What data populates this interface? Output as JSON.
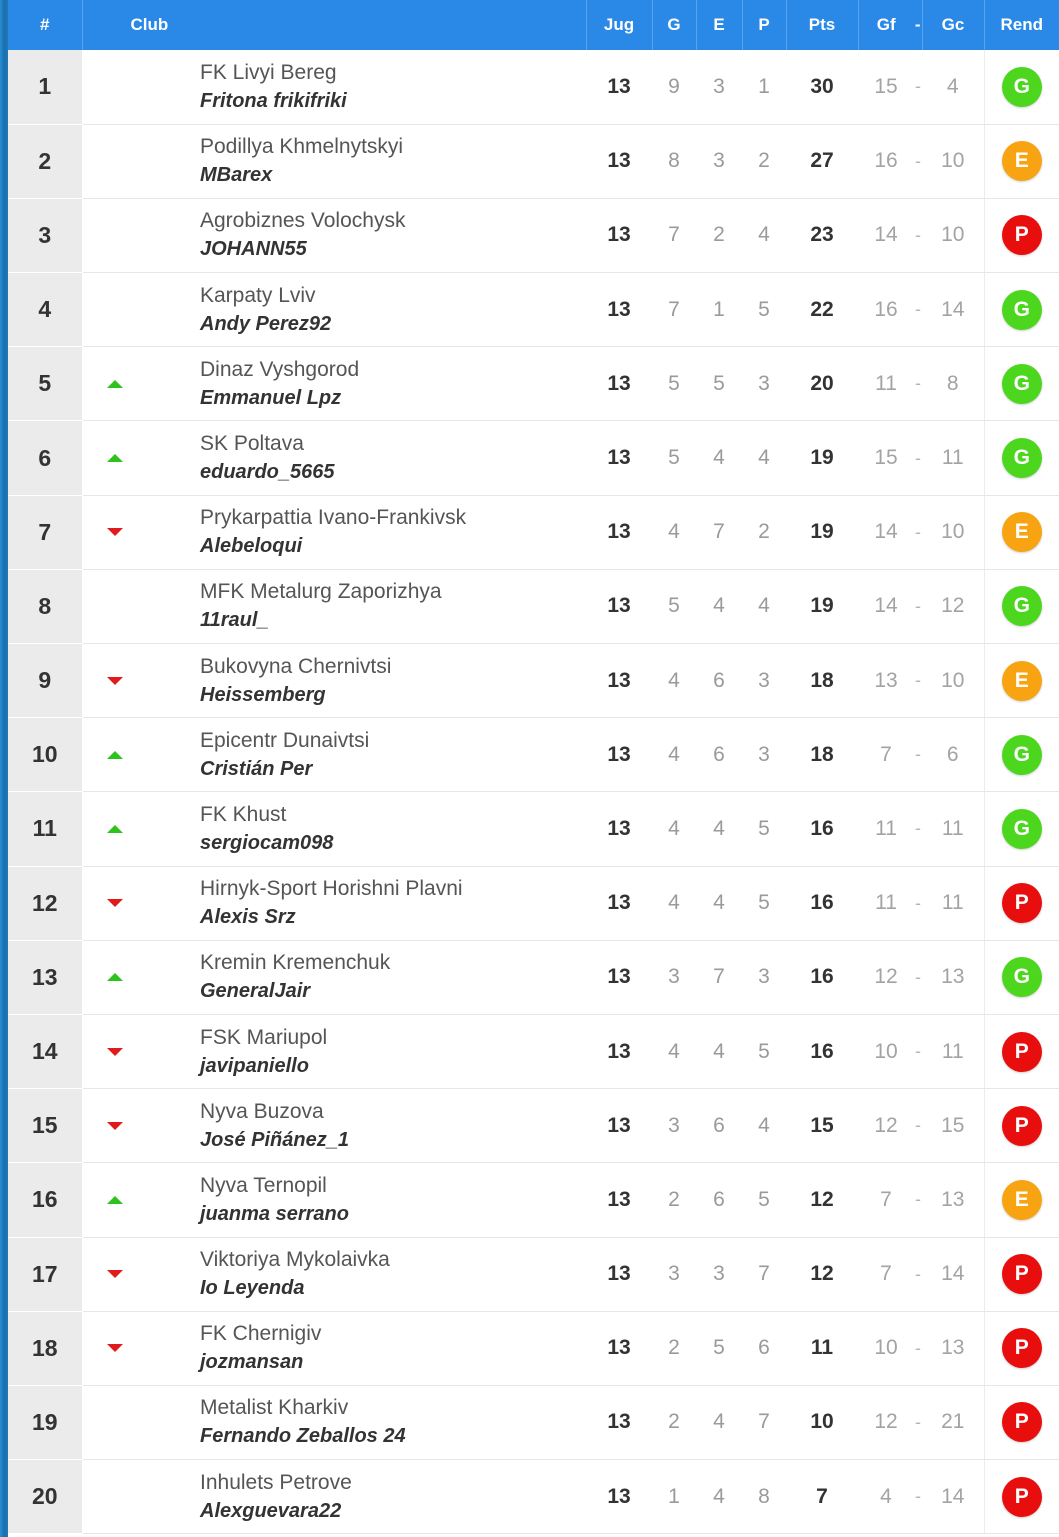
{
  "header": {
    "pos": "#",
    "club": "Club",
    "jug": "Jug",
    "g": "G",
    "e": "E",
    "p": "P",
    "pts": "Pts",
    "gf": "Gf",
    "dash": "-",
    "gc": "Gc",
    "rend": "Rend"
  },
  "colors": {
    "header_bg": "#2a88e6",
    "up": "#2ec21c",
    "down": "#e01b1b",
    "G": "#4cd61e",
    "E": "#f8a312",
    "P": "#e80e0e"
  },
  "rows": [
    {
      "pos": "1",
      "trend": "none",
      "team": "FK Livyi Bereg",
      "manager": "Fritona frikifriki",
      "jug": "13",
      "g": "9",
      "e": "3",
      "p": "1",
      "pts": "30",
      "gf": "15",
      "gc": "4",
      "rend": "G"
    },
    {
      "pos": "2",
      "trend": "none",
      "team": "Podillya Khmelnytskyi",
      "manager": "MBarex",
      "jug": "13",
      "g": "8",
      "e": "3",
      "p": "2",
      "pts": "27",
      "gf": "16",
      "gc": "10",
      "rend": "E"
    },
    {
      "pos": "3",
      "trend": "none",
      "team": "Agrobiznes Volochysk",
      "manager": "JOHANN55",
      "jug": "13",
      "g": "7",
      "e": "2",
      "p": "4",
      "pts": "23",
      "gf": "14",
      "gc": "10",
      "rend": "P"
    },
    {
      "pos": "4",
      "trend": "none",
      "team": "Karpaty Lviv",
      "manager": "Andy Perez92",
      "jug": "13",
      "g": "7",
      "e": "1",
      "p": "5",
      "pts": "22",
      "gf": "16",
      "gc": "14",
      "rend": "G"
    },
    {
      "pos": "5",
      "trend": "up",
      "team": "Dinaz Vyshgorod",
      "manager": "Emmanuel Lpz",
      "jug": "13",
      "g": "5",
      "e": "5",
      "p": "3",
      "pts": "20",
      "gf": "11",
      "gc": "8",
      "rend": "G"
    },
    {
      "pos": "6",
      "trend": "up",
      "team": "SK Poltava",
      "manager": "eduardo_5665",
      "jug": "13",
      "g": "5",
      "e": "4",
      "p": "4",
      "pts": "19",
      "gf": "15",
      "gc": "11",
      "rend": "G"
    },
    {
      "pos": "7",
      "trend": "down",
      "team": "Prykarpattia Ivano-Frankivsk",
      "manager": "Alebeloqui",
      "jug": "13",
      "g": "4",
      "e": "7",
      "p": "2",
      "pts": "19",
      "gf": "14",
      "gc": "10",
      "rend": "E"
    },
    {
      "pos": "8",
      "trend": "none",
      "team": "MFK Metalurg Zaporizhya",
      "manager": "11raul_",
      "jug": "13",
      "g": "5",
      "e": "4",
      "p": "4",
      "pts": "19",
      "gf": "14",
      "gc": "12",
      "rend": "G"
    },
    {
      "pos": "9",
      "trend": "down",
      "team": "Bukovyna Chernivtsi",
      "manager": "Heissemberg",
      "jug": "13",
      "g": "4",
      "e": "6",
      "p": "3",
      "pts": "18",
      "gf": "13",
      "gc": "10",
      "rend": "E"
    },
    {
      "pos": "10",
      "trend": "up",
      "team": "Epicentr Dunaivtsi",
      "manager": "Cristián Per",
      "jug": "13",
      "g": "4",
      "e": "6",
      "p": "3",
      "pts": "18",
      "gf": "7",
      "gc": "6",
      "rend": "G"
    },
    {
      "pos": "11",
      "trend": "up",
      "team": "FK Khust",
      "manager": "sergiocam098",
      "jug": "13",
      "g": "4",
      "e": "4",
      "p": "5",
      "pts": "16",
      "gf": "11",
      "gc": "11",
      "rend": "G"
    },
    {
      "pos": "12",
      "trend": "down",
      "team": "Hirnyk-Sport Horishni Plavni",
      "manager": "Alexis Srz",
      "jug": "13",
      "g": "4",
      "e": "4",
      "p": "5",
      "pts": "16",
      "gf": "11",
      "gc": "11",
      "rend": "P"
    },
    {
      "pos": "13",
      "trend": "up",
      "team": "Kremin Kremenchuk",
      "manager": "GeneralJair",
      "jug": "13",
      "g": "3",
      "e": "7",
      "p": "3",
      "pts": "16",
      "gf": "12",
      "gc": "13",
      "rend": "G"
    },
    {
      "pos": "14",
      "trend": "down",
      "team": "FSK Mariupol",
      "manager": "javipaniello",
      "jug": "13",
      "g": "4",
      "e": "4",
      "p": "5",
      "pts": "16",
      "gf": "10",
      "gc": "11",
      "rend": "P"
    },
    {
      "pos": "15",
      "trend": "down",
      "team": "Nyva Buzova",
      "manager": "José Piñánez_1",
      "jug": "13",
      "g": "3",
      "e": "6",
      "p": "4",
      "pts": "15",
      "gf": "12",
      "gc": "15",
      "rend": "P"
    },
    {
      "pos": "16",
      "trend": "up",
      "team": "Nyva Ternopil",
      "manager": "juanma serrano",
      "jug": "13",
      "g": "2",
      "e": "6",
      "p": "5",
      "pts": "12",
      "gf": "7",
      "gc": "13",
      "rend": "E"
    },
    {
      "pos": "17",
      "trend": "down",
      "team": "Viktoriya Mykolaivka",
      "manager": "Io Leyenda",
      "jug": "13",
      "g": "3",
      "e": "3",
      "p": "7",
      "pts": "12",
      "gf": "7",
      "gc": "14",
      "rend": "P"
    },
    {
      "pos": "18",
      "trend": "down",
      "team": "FK Chernigiv",
      "manager": "jozmansan",
      "jug": "13",
      "g": "2",
      "e": "5",
      "p": "6",
      "pts": "11",
      "gf": "10",
      "gc": "13",
      "rend": "P"
    },
    {
      "pos": "19",
      "trend": "none",
      "team": "Metalist Kharkiv",
      "manager": "Fernando Zeballos 24",
      "jug": "13",
      "g": "2",
      "e": "4",
      "p": "7",
      "pts": "10",
      "gf": "12",
      "gc": "21",
      "rend": "P"
    },
    {
      "pos": "20",
      "trend": "none",
      "team": "Inhulets Petrove",
      "manager": "Alexguevara22",
      "jug": "13",
      "g": "1",
      "e": "4",
      "p": "8",
      "pts": "7",
      "gf": "4",
      "gc": "14",
      "rend": "P"
    }
  ]
}
